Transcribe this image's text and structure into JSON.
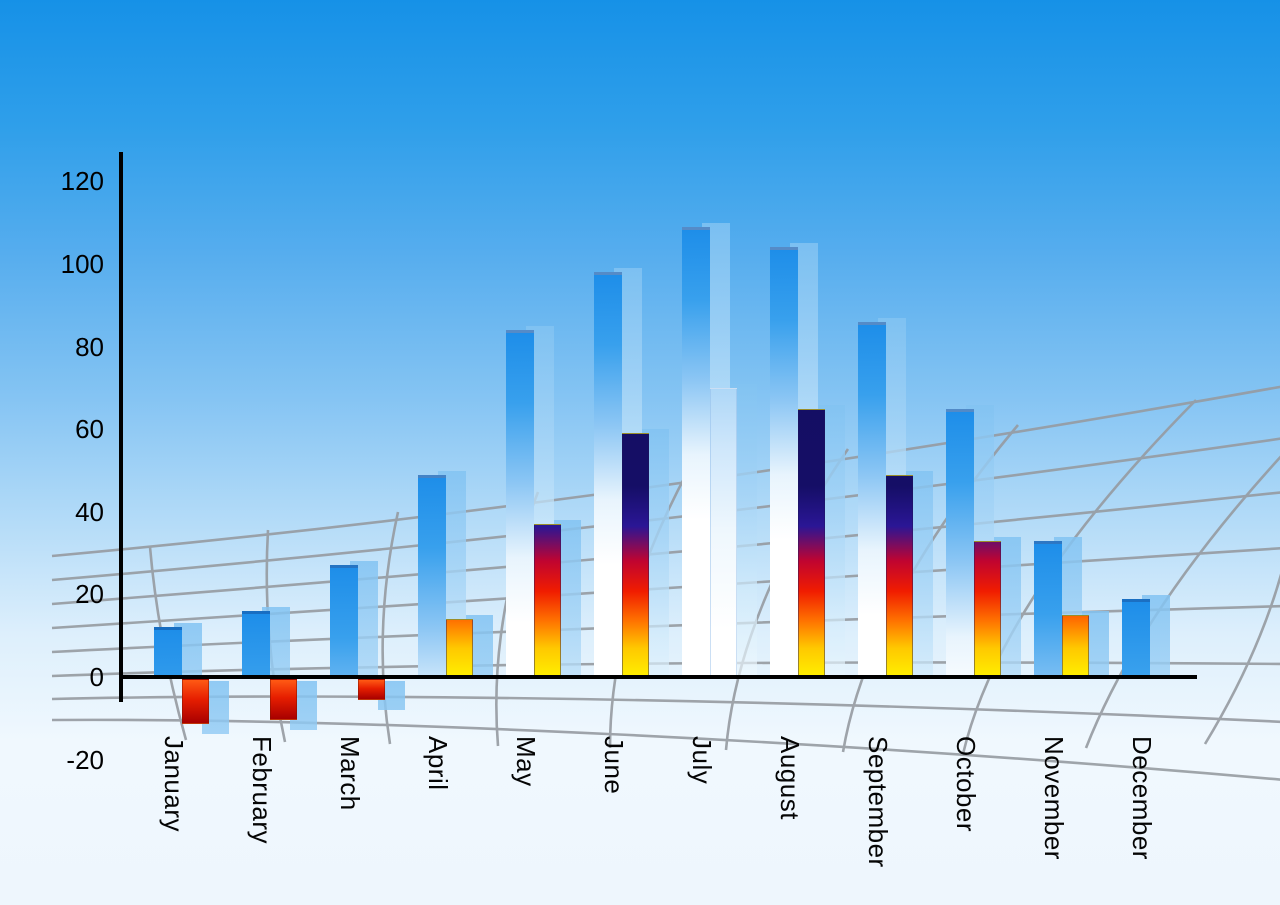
{
  "chart_data": {
    "type": "bar",
    "title": "",
    "categories": [
      "January",
      "February",
      "March",
      "April",
      "May",
      "June",
      "July",
      "August",
      "September",
      "October",
      "November",
      "December"
    ],
    "series": [
      {
        "name": "primary",
        "style": "glossy-blue",
        "values": [
          12,
          16,
          27,
          49,
          84,
          98,
          109,
          104,
          86,
          65,
          33,
          19
        ]
      },
      {
        "name": "secondary",
        "style": "heat-gradient",
        "values": [
          -11,
          -10,
          -5,
          14,
          37,
          59,
          70,
          65,
          49,
          33,
          15,
          null
        ]
      }
    ],
    "secondary_styles": [
      "negative",
      "negative",
      "negative",
      "heat",
      "heat",
      "heat",
      "glass",
      "heat",
      "heat",
      "heat",
      "heat",
      "none"
    ],
    "y_axis": {
      "min": -20,
      "max": 120,
      "tick_interval": 20,
      "ticks": [
        120,
        100,
        80,
        60,
        40,
        20,
        0,
        -20
      ]
    },
    "x_axis": {
      "label_rotation": "vertical"
    },
    "legend": "none",
    "grid": "curved-perspective-ground-grid",
    "background": "sky-blue-gradient"
  },
  "colors": {
    "sky_top": "#1691e7",
    "sky_bottom": "#eef6fd",
    "axis": "#000000",
    "grid_line": "#969ba1",
    "bar_blue_top": "#1e8ee9",
    "bar_blue_bottom": "#ffffff",
    "bar_shadow": "#a5d3f3",
    "heat_top": "#130d5e",
    "heat_mid": "#f01c00",
    "heat_bottom": "#ffee00",
    "negative_top": "#ff5a14",
    "negative_bottom": "#a80000"
  }
}
